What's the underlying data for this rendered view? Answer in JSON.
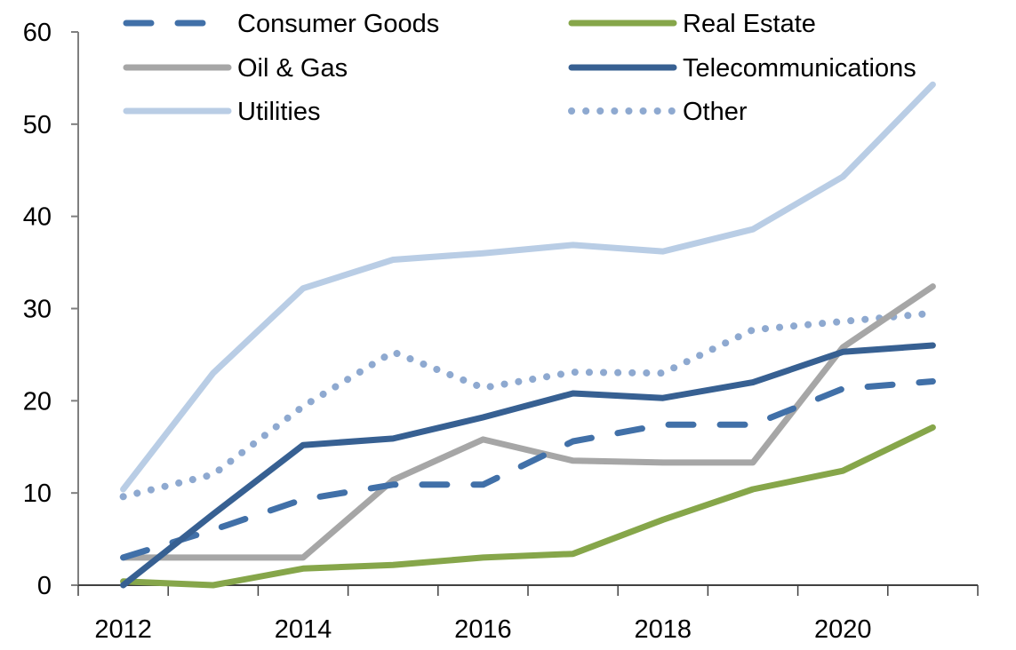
{
  "chart_data": {
    "type": "line",
    "title": "",
    "xlabel": "",
    "ylabel": "",
    "x": [
      2012,
      2013,
      2014,
      2015,
      2016,
      2017,
      2018,
      2019,
      2020,
      2021
    ],
    "x_tick_labels": [
      "2012",
      "",
      "2014",
      "",
      "2016",
      "",
      "2018",
      "",
      "2020",
      ""
    ],
    "y_ticks": [
      0,
      10,
      20,
      30,
      40,
      50,
      60
    ],
    "ylim": [
      0,
      60
    ],
    "grid": false,
    "legend_position": "top",
    "series": [
      {
        "name": "Consumer Goods",
        "color": "#4170A8",
        "style": "dashed",
        "values": [
          3.0,
          6.0,
          9.3,
          10.9,
          10.9,
          15.6,
          17.4,
          17.4,
          21.3,
          22.1
        ]
      },
      {
        "name": "Real Estate",
        "color": "#86A64A",
        "style": "solid",
        "values": [
          0.4,
          0.0,
          1.8,
          2.2,
          3.0,
          3.4,
          7.1,
          10.4,
          12.4,
          17.1
        ]
      },
      {
        "name": "Oil & Gas",
        "color": "#A6A6A6",
        "style": "solid",
        "values": [
          3.0,
          3.0,
          3.0,
          11.4,
          15.8,
          13.5,
          13.3,
          13.3,
          25.8,
          32.4
        ]
      },
      {
        "name": "Telecommunications",
        "color": "#376092",
        "style": "solid",
        "values": [
          0.0,
          7.7,
          15.2,
          15.9,
          18.2,
          20.8,
          20.3,
          22.0,
          25.3,
          26.0
        ]
      },
      {
        "name": "Utilities",
        "color": "#B9CDE5",
        "style": "solid",
        "values": [
          10.4,
          23.0,
          32.2,
          35.3,
          36.0,
          36.9,
          36.2,
          38.6,
          44.3,
          54.3
        ]
      },
      {
        "name": "Other",
        "color": "#8EA9D0",
        "style": "dotted",
        "values": [
          9.6,
          12.0,
          19.4,
          25.3,
          21.4,
          23.1,
          23.0,
          27.7,
          28.6,
          29.5
        ]
      }
    ]
  }
}
